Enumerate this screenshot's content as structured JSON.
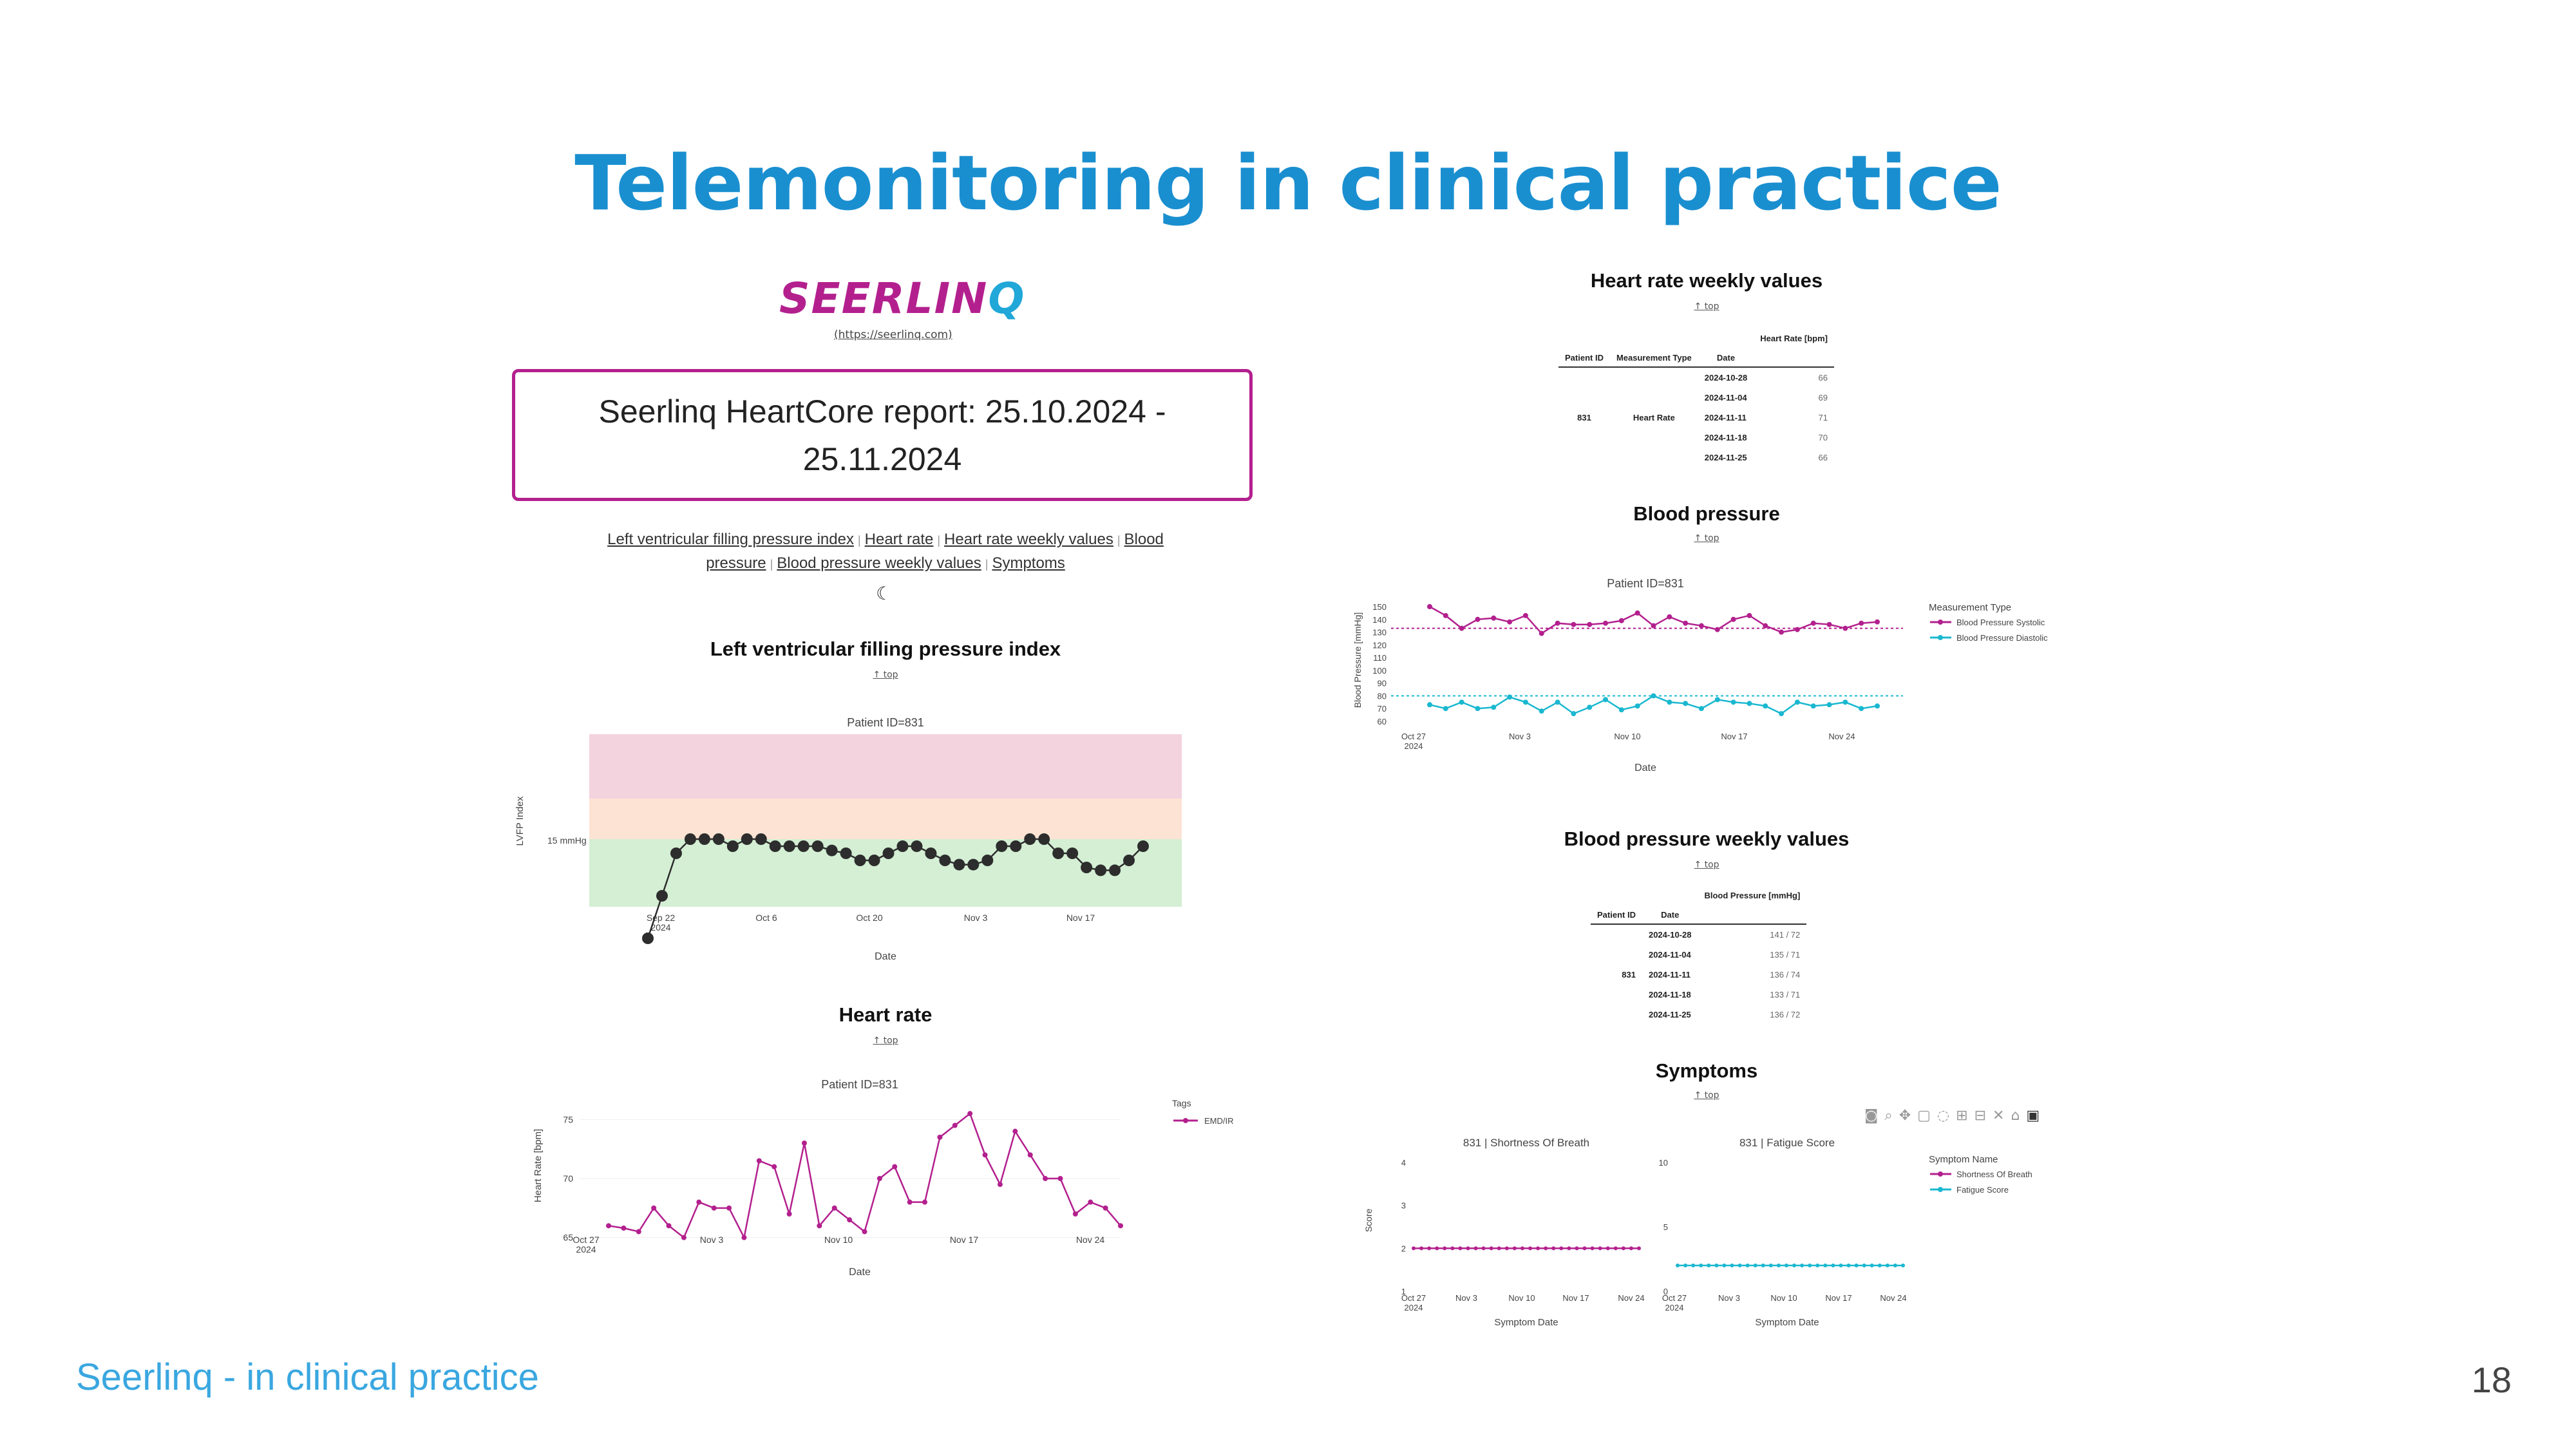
{
  "slide": {
    "title": "Telemonitoring in clinical practice",
    "footer_left": "Seerlinq - in clinical practice",
    "page_number": "18"
  },
  "report": {
    "logo_text": "SEERLIN",
    "logo_q": "Q",
    "logo_link": "(https://seerlinq.com)",
    "title_line1": "Seerlinq HeartCore report: 25.10.2024 -",
    "title_line2": "25.11.2024",
    "nav": [
      "Left ventricular filling pressure index",
      "Heart rate",
      "Heart rate weekly values",
      "Blood pressure",
      "Blood pressure weekly values",
      "Symptoms"
    ],
    "dark_mode_icon": "moon-icon",
    "top_link": "↑ top"
  },
  "lvfp": {
    "section_title": "Left ventricular filling pressure index",
    "plot_title": "Patient ID=831",
    "y_label": "LVFP Index",
    "y_tick": "15 mmHg",
    "x_label": "Date",
    "x_ticks": [
      "Sep 22\n2024",
      "Oct 6",
      "Oct 20",
      "Nov 3",
      "Nov 17"
    ],
    "zone_colors": {
      "high": "#f2d3de",
      "mid": "#fde3d3",
      "normal": "#d4efd4"
    }
  },
  "heart_rate": {
    "section_title": "Heart rate",
    "plot_title": "Patient ID=831",
    "y_label": "Heart Rate [bpm]",
    "y_ticks": [
      "75",
      "70",
      "65"
    ],
    "x_label": "Date",
    "x_ticks": [
      "Oct 27\n2024",
      "Nov 3",
      "Nov 10",
      "Nov 17",
      "Nov 24"
    ],
    "legend_title": "Tags",
    "legend_item": "EMD/IR",
    "color": "#b3208e"
  },
  "hr_weekly": {
    "section_title": "Heart rate weekly values",
    "col_group": "Heart Rate [bpm]",
    "headers": [
      "Patient ID",
      "Measurement Type",
      "Date"
    ],
    "patient_id": "831",
    "measurement": "Heart Rate",
    "rows": [
      {
        "date": "2024-10-28",
        "value": "66"
      },
      {
        "date": "2024-11-04",
        "value": "69"
      },
      {
        "date": "2024-11-11",
        "value": "71"
      },
      {
        "date": "2024-11-18",
        "value": "70"
      },
      {
        "date": "2024-11-25",
        "value": "66"
      }
    ]
  },
  "blood_pressure": {
    "section_title": "Blood pressure",
    "plot_title": "Patient ID=831",
    "y_label": "Blood Pressure [mmHg]",
    "y_ticks": [
      "150",
      "140",
      "130",
      "120",
      "110",
      "100",
      "90",
      "80",
      "70",
      "60"
    ],
    "x_label": "Date",
    "x_ticks": [
      "Oct 27\n2024",
      "Nov 3",
      "Nov 10",
      "Nov 17",
      "Nov 24"
    ],
    "legend_title": "Measurement Type",
    "legend_items": [
      "Blood Pressure Systolic",
      "Blood Pressure Diastolic"
    ],
    "colors": [
      "#b3208e",
      "#1ab8d0"
    ]
  },
  "bp_weekly": {
    "section_title": "Blood pressure weekly values",
    "col_group": "Blood Pressure [mmHg]",
    "headers": [
      "Patient ID",
      "Date"
    ],
    "patient_id": "831",
    "rows": [
      {
        "date": "2024-10-28",
        "value": "141 / 72"
      },
      {
        "date": "2024-11-04",
        "value": "135 / 71"
      },
      {
        "date": "2024-11-11",
        "value": "136 / 74"
      },
      {
        "date": "2024-11-18",
        "value": "133 / 71"
      },
      {
        "date": "2024-11-25",
        "value": "136 / 72"
      }
    ]
  },
  "symptoms": {
    "section_title": "Symptoms",
    "panel1_title": "831 | Shortness Of Breath",
    "panel2_title": "831 | Fatigue Score",
    "y_label": "Score",
    "panel1_y_ticks": [
      "4",
      "3",
      "2",
      "1"
    ],
    "panel2_y_ticks": [
      "10",
      "5",
      "0"
    ],
    "x_label": "Symptom Date",
    "x_ticks": [
      "Oct 27\n2024",
      "Nov 3",
      "Nov 10",
      "Nov 17",
      "Nov 24"
    ],
    "legend_title": "Symptom Name",
    "legend_items": [
      "Shortness Of Breath",
      "Fatigue Score"
    ],
    "colors": [
      "#b3208e",
      "#1ab8d0"
    ],
    "toolbar_icons": [
      "camera-icon",
      "zoom-icon",
      "pan-icon",
      "box-select-icon",
      "lasso-icon",
      "zoom-in-icon",
      "zoom-out-icon",
      "autoscale-icon",
      "home-icon",
      "plotly-logo-icon"
    ]
  },
  "chart_data": [
    {
      "type": "scatter",
      "title": "Patient ID=831",
      "xlabel": "Date",
      "ylabel": "LVFP Index",
      "series": [
        {
          "values": [
            8,
            11,
            14,
            15,
            15,
            15,
            14.5,
            15,
            15,
            14.5,
            14.5,
            14.5,
            14.5,
            14.2,
            14,
            13.5,
            13.5,
            14,
            14.5,
            14.5,
            14,
            13.5,
            13.2,
            13.2,
            13.5,
            14.5,
            14.5,
            15,
            15,
            14,
            14,
            13,
            12.8,
            12.8,
            13.5,
            14.5
          ]
        }
      ],
      "threshold_label": "15 mmHg"
    },
    {
      "type": "line",
      "title": "Patient ID=831",
      "xlabel": "Date",
      "ylabel": "Heart Rate [bpm]",
      "ylim": [
        64,
        76
      ],
      "series": [
        {
          "name": "EMD/IR",
          "values": [
            66,
            65.8,
            65.5,
            67.5,
            66,
            65,
            68,
            67.5,
            67.5,
            65,
            71.5,
            71,
            67,
            73,
            66,
            67.5,
            66.5,
            65.5,
            70,
            71,
            68,
            68,
            73.5,
            74.5,
            75.5,
            72,
            69.5,
            74,
            72,
            70,
            70,
            67,
            68,
            67.5,
            66
          ]
        }
      ]
    },
    {
      "type": "line",
      "title": "Patient ID=831",
      "xlabel": "Date",
      "ylabel": "Blood Pressure [mmHg]",
      "ylim": [
        60,
        150
      ],
      "series": [
        {
          "name": "Blood Pressure Systolic",
          "values": [
            150,
            143,
            133,
            140,
            141,
            138,
            143,
            129,
            137,
            136,
            136,
            137,
            139,
            145,
            135,
            142,
            137,
            135,
            132,
            140,
            143,
            135,
            130,
            132,
            137,
            136,
            133,
            137,
            138
          ]
        },
        {
          "name": "Blood Pressure Diastolic",
          "values": [
            73,
            70,
            75,
            70,
            71,
            79,
            75,
            68,
            75,
            66,
            71,
            77,
            69,
            72,
            80,
            75,
            74,
            70,
            77,
            75,
            74,
            72,
            66,
            75,
            72,
            73,
            75,
            70,
            72
          ]
        }
      ]
    },
    {
      "type": "line",
      "title": "831 | Shortness Of Breath",
      "xlabel": "Symptom Date",
      "ylabel": "Score",
      "series": [
        {
          "name": "Shortness Of Breath",
          "values": [
            2,
            2,
            2,
            2,
            2,
            2,
            2,
            2,
            2,
            2,
            2,
            2,
            2,
            2,
            2,
            2,
            2,
            2,
            2,
            2,
            2,
            2,
            2,
            2,
            2,
            2,
            2,
            2,
            2,
            2
          ]
        }
      ]
    },
    {
      "type": "line",
      "title": "831 | Fatigue Score",
      "xlabel": "Symptom Date",
      "series": [
        {
          "name": "Fatigue Score",
          "values": [
            2,
            2,
            2,
            2,
            2,
            2,
            2,
            2,
            2,
            2,
            2,
            2,
            2,
            2,
            2,
            2,
            2,
            2,
            2,
            2,
            2,
            2,
            2,
            2,
            2,
            2,
            2,
            2,
            2,
            2
          ]
        }
      ]
    }
  ]
}
